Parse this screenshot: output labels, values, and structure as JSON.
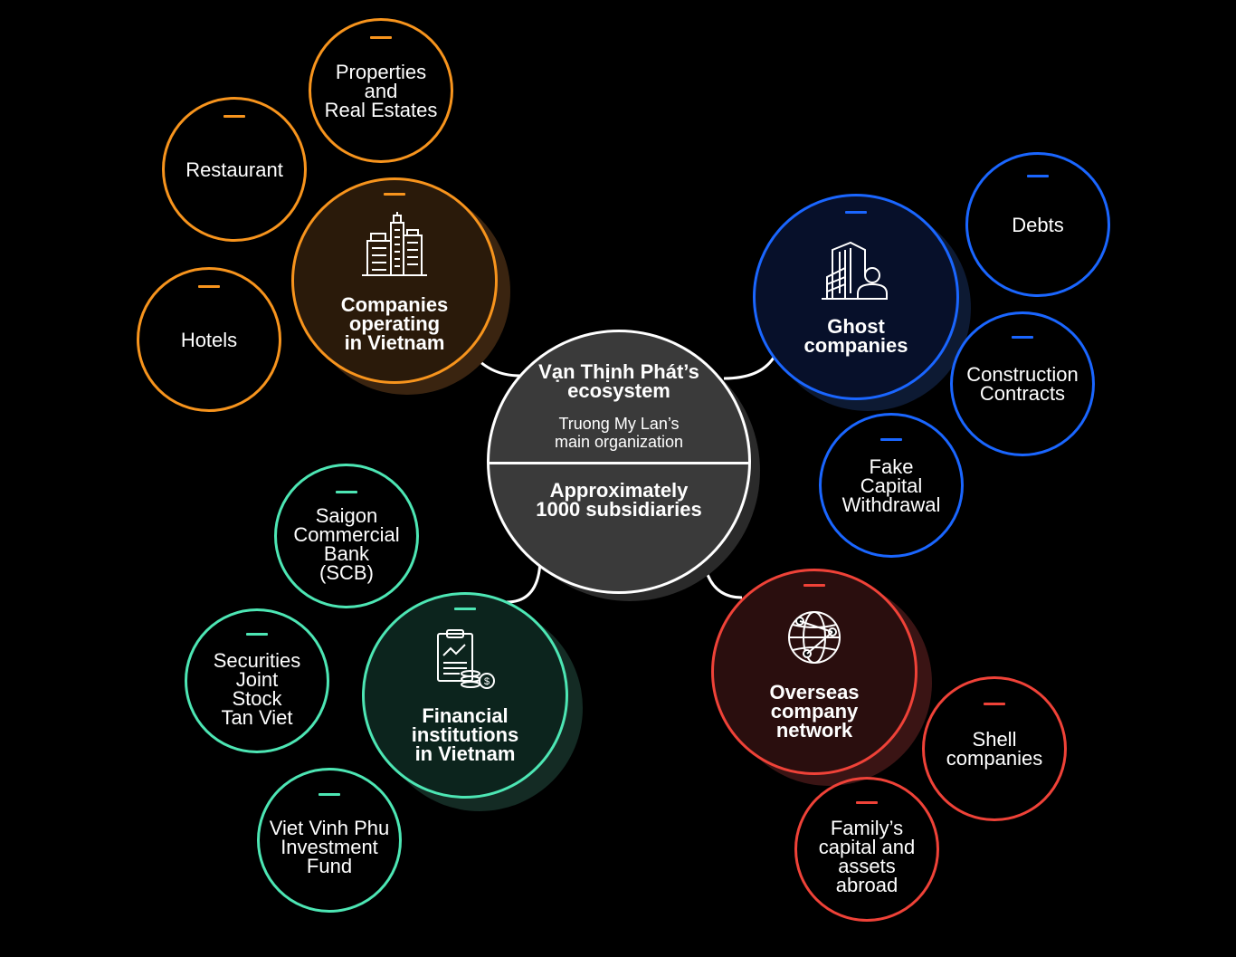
{
  "colors": {
    "background": "#000000",
    "orange": "#f7941d",
    "blue": "#1a66ff",
    "green": "#4de6b4",
    "red": "#ef4238",
    "center_fill": "#3a3a3a",
    "white": "#ffffff"
  },
  "center": {
    "title": "Vạn Thịnh Phát’s\necosystem",
    "subtitle": "Truong My Lan’s\nmain organization",
    "count": "Approximately\n1000 subsidiaries"
  },
  "hubs": {
    "companies": {
      "label": "Companies\noperating\nin Vietnam",
      "icon": "city-buildings-icon"
    },
    "ghost": {
      "label": "Ghost\ncompanies",
      "icon": "building-person-icon"
    },
    "financial": {
      "label": "Financial\ninstitutions\nin Vietnam",
      "icon": "report-coins-icon"
    },
    "overseas": {
      "label": "Overseas\ncompany\nnetwork",
      "icon": "globe-network-icon"
    }
  },
  "nodes": {
    "properties": "Properties\nand\nReal Estates",
    "restaurant": "Restaurant",
    "hotels": "Hotels",
    "debts": "Debts",
    "construction": "Construction\nContracts",
    "fake_capital": "Fake\nCapital\nWithdrawal",
    "scb": "Saigon\nCommercial\nBank\n(SCB)",
    "securities": "Securities\nJoint\nStock\nTan Viet",
    "viet_vinh_phu": "Viet Vinh Phu\nInvestment\nFund",
    "shell": "Shell\ncompanies",
    "family": "Family’s\ncapital and\nassets\nabroad"
  }
}
